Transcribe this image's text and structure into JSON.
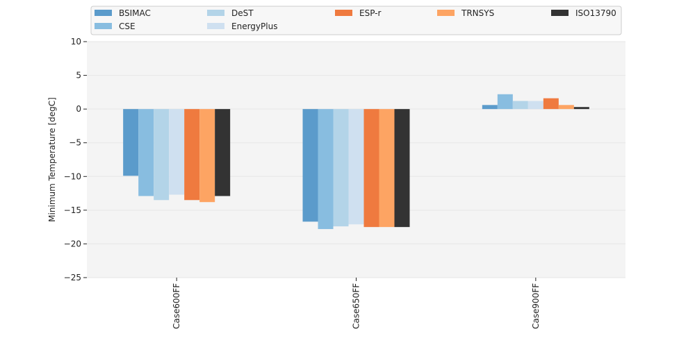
{
  "chart_data": {
    "type": "bar",
    "title": "",
    "xlabel": "",
    "ylabel": "Minimum Temperature [degC]",
    "categories": [
      "Case600FF",
      "Case650FF",
      "Case900FF"
    ],
    "ylim": [
      -25,
      10
    ],
    "yticks": [
      -25,
      -20,
      -15,
      -10,
      -5,
      0,
      5,
      10
    ],
    "grid": true,
    "legend_position": "top",
    "series": [
      {
        "name": "BSIMAC",
        "color": "#5b9bcb",
        "values": [
          -9.9,
          -16.7,
          0.6
        ]
      },
      {
        "name": "CSE",
        "color": "#88bde0",
        "values": [
          -12.9,
          -17.8,
          2.2
        ]
      },
      {
        "name": "DeST",
        "color": "#b3d4e8",
        "values": [
          -13.5,
          -17.4,
          1.2
        ]
      },
      {
        "name": "EnergyPlus",
        "color": "#cfe0f0",
        "values": [
          -12.7,
          -17.1,
          1.2
        ]
      },
      {
        "name": "ESP-r",
        "color": "#ef7a3f",
        "values": [
          -13.5,
          -17.5,
          1.6
        ]
      },
      {
        "name": "TRNSYS",
        "color": "#fda463",
        "values": [
          -13.8,
          -17.5,
          0.6
        ]
      },
      {
        "name": "ISO13790",
        "color": "#333333",
        "values": [
          -12.9,
          -17.5,
          0.3
        ]
      }
    ]
  }
}
